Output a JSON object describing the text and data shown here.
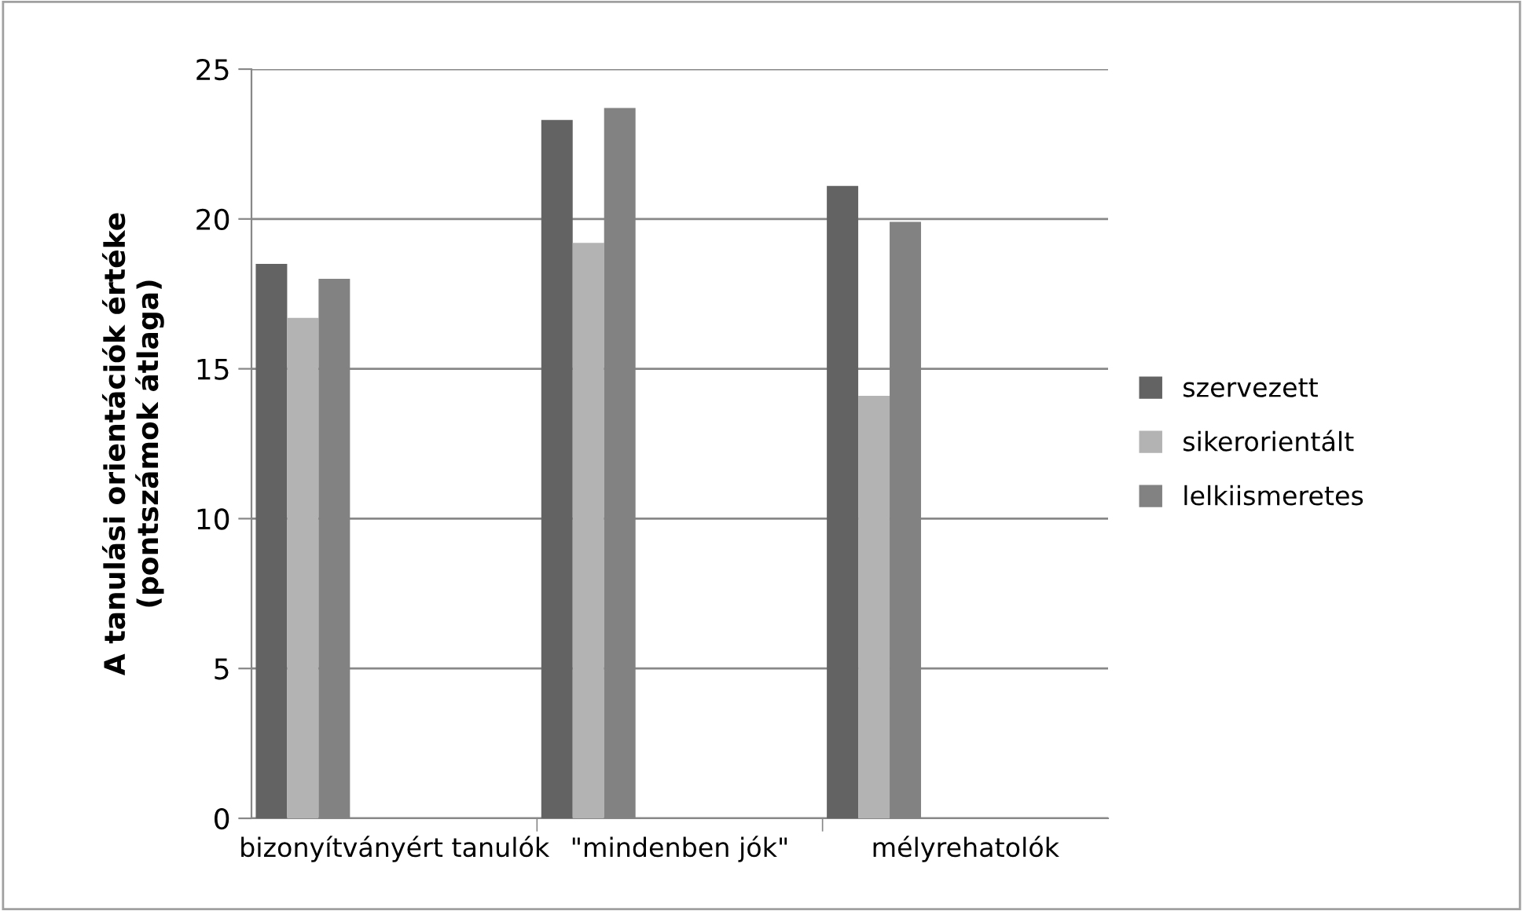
{
  "chart_data": {
    "type": "bar",
    "ylabel": "A tanulási orientációk értéke\n(pontszámok átlaga)",
    "categories": [
      "bizonyítványért tanulók",
      "\"mindenben jók\"",
      "mélyrehatolók"
    ],
    "series": [
      {
        "name": "szervezett",
        "color": "#636363",
        "values": [
          18.5,
          23.3,
          21.1
        ]
      },
      {
        "name": "sikerorientált",
        "color": "#b3b3b3",
        "values": [
          16.7,
          19.2,
          14.1
        ]
      },
      {
        "name": "lelkiismeretes",
        "color": "#828282",
        "values": [
          18.0,
          23.7,
          19.9
        ]
      }
    ],
    "ylim": [
      0,
      25
    ],
    "yticks": [
      0,
      5,
      10,
      15,
      20,
      25
    ],
    "grid": "y",
    "legend": "right"
  }
}
